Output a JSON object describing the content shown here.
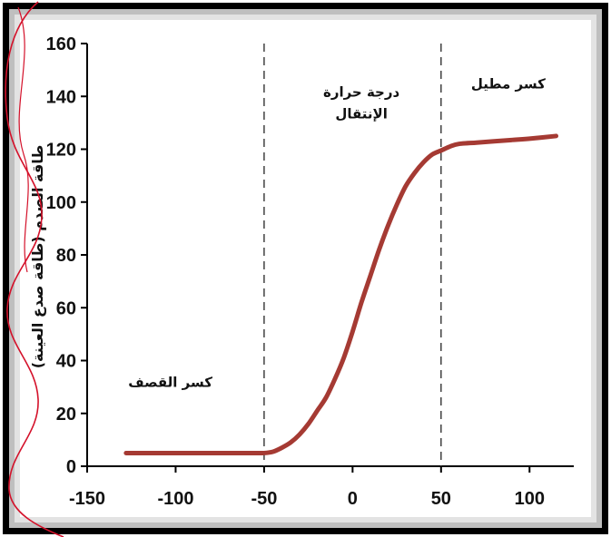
{
  "chart_data": {
    "type": "line",
    "ylabel": "طاقة الصدم (طاقة صدع العينة)",
    "xlabel": "",
    "xlim": [
      -150,
      125
    ],
    "ylim": [
      0,
      160
    ],
    "x_ticks": [
      -150,
      -100,
      -50,
      0,
      50,
      100
    ],
    "y_ticks": [
      0,
      20,
      40,
      60,
      80,
      100,
      120,
      140,
      160
    ],
    "grid": false,
    "series": [
      {
        "color": "#a53a33",
        "x": [
          -128,
          -110,
          -90,
          -70,
          -55,
          -50,
          -45,
          -40,
          -35,
          -30,
          -25,
          -20,
          -15,
          -10,
          -5,
          0,
          5,
          10,
          15,
          20,
          25,
          30,
          35,
          40,
          45,
          50,
          55,
          60,
          70,
          80,
          90,
          100,
          115
        ],
        "y": [
          5,
          5,
          5,
          5,
          5,
          5,
          5.5,
          7,
          9,
          12,
          16,
          21,
          26,
          33,
          41,
          51,
          62,
          72,
          82,
          91,
          99,
          106,
          111,
          115,
          118,
          119.5,
          121,
          122,
          122.5,
          123,
          123.5,
          124,
          125
        ]
      }
    ],
    "dividers": [
      -50,
      50
    ],
    "regions": [
      {
        "lines": [
          "كسر القصف"
        ],
        "x": -103,
        "y": 30
      },
      {
        "lines": [
          "درجة حرارة",
          "الإنتقال"
        ],
        "x": 5,
        "y": 140
      },
      {
        "lines": [
          "كسر مطيل"
        ],
        "x": 88,
        "y": 143
      }
    ]
  },
  "annotation_color": "#d4112a"
}
